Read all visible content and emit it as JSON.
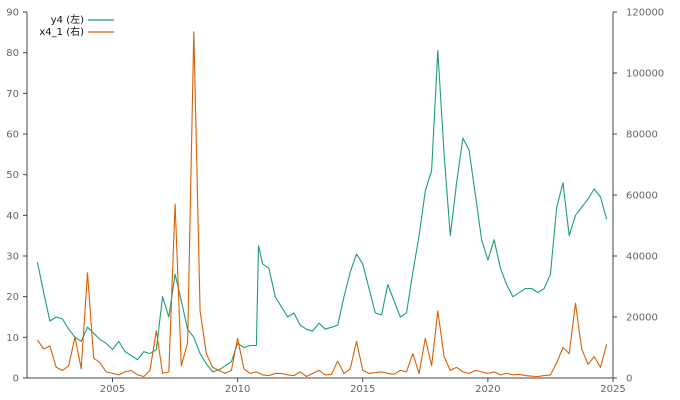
{
  "chart_data": {
    "type": "line",
    "x_axis": {
      "ticks": [
        "2005",
        "2010",
        "2015",
        "2020",
        "2025"
      ],
      "range": [
        "2001-08",
        "2025-01"
      ]
    },
    "y_left": {
      "ticks": [
        "0",
        "10",
        "20",
        "30",
        "40",
        "50",
        "60",
        "70",
        "80",
        "90"
      ],
      "range": [
        0,
        90
      ]
    },
    "y_right": {
      "ticks": [
        "0",
        "20000",
        "40000",
        "60000",
        "80000",
        "100000",
        "120000"
      ],
      "range": [
        0,
        120000
      ]
    },
    "grid": false,
    "legend_position": "top-left",
    "series": [
      {
        "name": "y4 (左)",
        "axis": "left",
        "color": "#1b9e77",
        "points": [
          [
            "2002-01",
            28.5
          ],
          [
            "2002-04",
            21
          ],
          [
            "2002-07",
            14
          ],
          [
            "2002-10",
            15
          ],
          [
            "2003-01",
            14.5
          ],
          [
            "2003-04",
            12
          ],
          [
            "2003-07",
            10
          ],
          [
            "2003-10",
            9
          ],
          [
            "2004-01",
            12.5
          ],
          [
            "2004-04",
            11
          ],
          [
            "2004-07",
            9.5
          ],
          [
            "2004-10",
            8.5
          ],
          [
            "2005-01",
            7
          ],
          [
            "2005-04",
            9
          ],
          [
            "2005-07",
            6.5
          ],
          [
            "2005-10",
            5.5
          ],
          [
            "2006-01",
            4.5
          ],
          [
            "2006-04",
            6.5
          ],
          [
            "2006-07",
            6
          ],
          [
            "2006-10",
            7
          ],
          [
            "2007-01",
            20
          ],
          [
            "2007-04",
            15
          ],
          [
            "2007-07",
            25.5
          ],
          [
            "2007-10",
            19
          ],
          [
            "2008-01",
            12
          ],
          [
            "2008-04",
            10
          ],
          [
            "2008-07",
            6
          ],
          [
            "2008-10",
            3.5
          ],
          [
            "2009-01",
            1.5
          ],
          [
            "2009-04",
            2
          ],
          [
            "2009-07",
            3
          ],
          [
            "2009-10",
            4
          ],
          [
            "2010-01",
            8.5
          ],
          [
            "2010-04",
            7.5
          ],
          [
            "2010-07",
            8
          ],
          [
            "2010-10",
            8
          ],
          [
            "2010-11",
            32.5
          ],
          [
            "2011-01",
            28
          ],
          [
            "2011-04",
            27
          ],
          [
            "2011-07",
            20
          ],
          [
            "2011-10",
            17.5
          ],
          [
            "2012-01",
            15
          ],
          [
            "2012-04",
            16
          ],
          [
            "2012-07",
            13
          ],
          [
            "2012-10",
            12
          ],
          [
            "2013-01",
            11.5
          ],
          [
            "2013-04",
            13.5
          ],
          [
            "2013-07",
            12
          ],
          [
            "2013-10",
            12.5
          ],
          [
            "2014-01",
            13
          ],
          [
            "2014-04",
            20
          ],
          [
            "2014-07",
            26
          ],
          [
            "2014-10",
            30.5
          ],
          [
            "2015-01",
            28
          ],
          [
            "2015-04",
            22
          ],
          [
            "2015-07",
            16
          ],
          [
            "2015-10",
            15.5
          ],
          [
            "2016-01",
            23
          ],
          [
            "2016-04",
            19
          ],
          [
            "2016-07",
            15
          ],
          [
            "2016-10",
            16
          ],
          [
            "2017-01",
            26
          ],
          [
            "2017-04",
            35
          ],
          [
            "2017-07",
            46
          ],
          [
            "2017-10",
            51
          ],
          [
            "2018-01",
            80.5
          ],
          [
            "2018-04",
            55
          ],
          [
            "2018-07",
            35
          ],
          [
            "2018-10",
            48
          ],
          [
            "2019-01",
            59
          ],
          [
            "2019-04",
            56
          ],
          [
            "2019-07",
            45
          ],
          [
            "2019-10",
            34
          ],
          [
            "2020-01",
            29
          ],
          [
            "2020-04",
            34
          ],
          [
            "2020-07",
            27
          ],
          [
            "2020-10",
            23
          ],
          [
            "2021-01",
            20
          ],
          [
            "2021-04",
            21
          ],
          [
            "2021-07",
            22
          ],
          [
            "2021-10",
            22
          ],
          [
            "2022-01",
            21
          ],
          [
            "2022-04",
            22
          ],
          [
            "2022-07",
            25.5
          ],
          [
            "2022-10",
            42
          ],
          [
            "2023-01",
            48
          ],
          [
            "2023-04",
            35
          ],
          [
            "2023-07",
            40
          ],
          [
            "2023-10",
            42
          ],
          [
            "2024-01",
            44
          ],
          [
            "2024-04",
            46.5
          ],
          [
            "2024-07",
            44.5
          ],
          [
            "2024-10",
            39
          ]
        ]
      },
      {
        "name": "x4_1 (右)",
        "axis": "right",
        "color": "#d95f02",
        "points": [
          [
            "2002-01",
            12500
          ],
          [
            "2002-04",
            9500
          ],
          [
            "2002-07",
            10500
          ],
          [
            "2002-10",
            3500
          ],
          [
            "2003-01",
            2500
          ],
          [
            "2003-04",
            4000
          ],
          [
            "2003-07",
            13500
          ],
          [
            "2003-10",
            3000
          ],
          [
            "2004-01",
            34500
          ],
          [
            "2004-04",
            6500
          ],
          [
            "2004-07",
            5000
          ],
          [
            "2004-10",
            2000
          ],
          [
            "2005-01",
            1500
          ],
          [
            "2005-04",
            1000
          ],
          [
            "2005-07",
            2000
          ],
          [
            "2005-10",
            2500
          ],
          [
            "2006-01",
            1000
          ],
          [
            "2006-04",
            500
          ],
          [
            "2006-07",
            2500
          ],
          [
            "2006-10",
            15500
          ],
          [
            "2007-01",
            1500
          ],
          [
            "2007-04",
            2000
          ],
          [
            "2007-07",
            57000
          ],
          [
            "2007-10",
            4000
          ],
          [
            "2008-01",
            11500
          ],
          [
            "2008-04",
            113500
          ],
          [
            "2008-07",
            22000
          ],
          [
            "2008-10",
            8000
          ],
          [
            "2009-01",
            3500
          ],
          [
            "2009-04",
            2500
          ],
          [
            "2009-07",
            1500
          ],
          [
            "2009-10",
            2500
          ],
          [
            "2010-01",
            13000
          ],
          [
            "2010-04",
            3000
          ],
          [
            "2010-07",
            1500
          ],
          [
            "2010-10",
            2000
          ],
          [
            "2011-01",
            1000
          ],
          [
            "2011-04",
            800
          ],
          [
            "2011-07",
            1500
          ],
          [
            "2011-10",
            1500
          ],
          [
            "2012-01",
            1000
          ],
          [
            "2012-04",
            800
          ],
          [
            "2012-07",
            2000
          ],
          [
            "2012-10",
            500
          ],
          [
            "2013-01",
            1500
          ],
          [
            "2013-04",
            2500
          ],
          [
            "2013-07",
            1000
          ],
          [
            "2013-10",
            1200
          ],
          [
            "2014-01",
            5500
          ],
          [
            "2014-04",
            1500
          ],
          [
            "2014-07",
            3000
          ],
          [
            "2014-10",
            12000
          ],
          [
            "2015-01",
            2500
          ],
          [
            "2015-04",
            1500
          ],
          [
            "2015-07",
            1800
          ],
          [
            "2015-10",
            2000
          ],
          [
            "2016-01",
            1500
          ],
          [
            "2016-04",
            1200
          ],
          [
            "2016-07",
            2500
          ],
          [
            "2016-10",
            2000
          ],
          [
            "2017-01",
            8000
          ],
          [
            "2017-04",
            1500
          ],
          [
            "2017-07",
            13000
          ],
          [
            "2017-10",
            4000
          ],
          [
            "2018-01",
            22000
          ],
          [
            "2018-04",
            7000
          ],
          [
            "2018-07",
            2500
          ],
          [
            "2018-10",
            3500
          ],
          [
            "2019-01",
            2000
          ],
          [
            "2019-04",
            1500
          ],
          [
            "2019-07",
            2500
          ],
          [
            "2019-10",
            2000
          ],
          [
            "2020-01",
            1500
          ],
          [
            "2020-04",
            2000
          ],
          [
            "2020-07",
            1000
          ],
          [
            "2020-10",
            1500
          ],
          [
            "2021-01",
            1000
          ],
          [
            "2021-04",
            1200
          ],
          [
            "2021-07",
            800
          ],
          [
            "2021-10",
            600
          ],
          [
            "2022-01",
            500
          ],
          [
            "2022-04",
            800
          ],
          [
            "2022-07",
            1000
          ],
          [
            "2022-10",
            5000
          ],
          [
            "2023-01",
            10000
          ],
          [
            "2023-04",
            8000
          ],
          [
            "2023-07",
            24500
          ],
          [
            "2023-10",
            9500
          ],
          [
            "2024-01",
            4500
          ],
          [
            "2024-04",
            7000
          ],
          [
            "2024-07",
            3500
          ],
          [
            "2024-10",
            11000
          ]
        ]
      }
    ]
  }
}
